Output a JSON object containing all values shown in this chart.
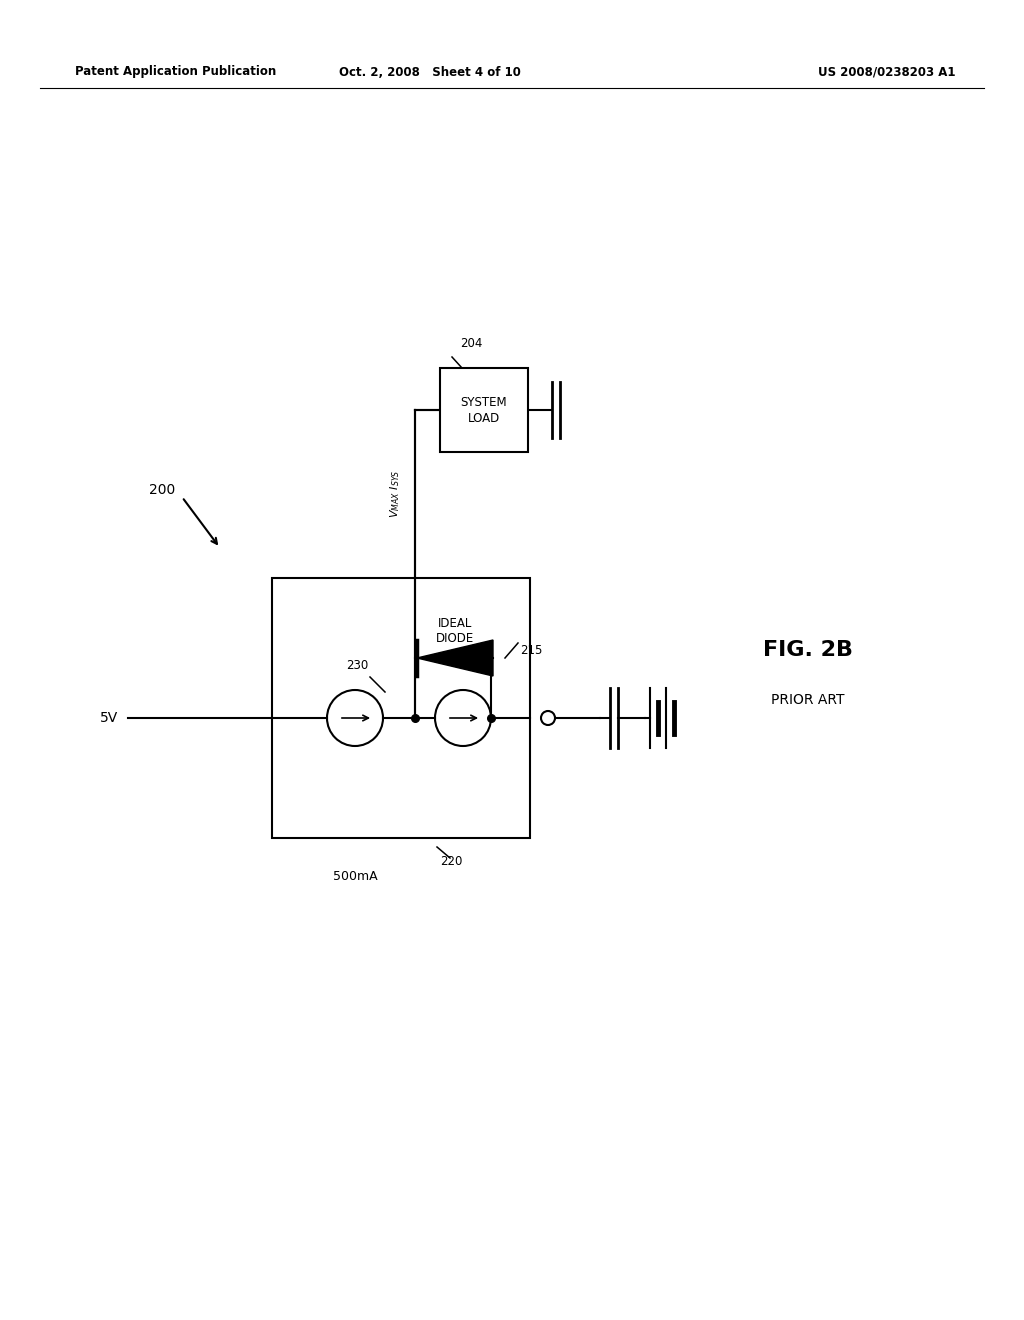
{
  "bg_color": "#ffffff",
  "line_color": "#000000",
  "header_left": "Patent Application Publication",
  "header_center": "Oct. 2, 2008   Sheet 4 of 10",
  "header_right": "US 2008/0238203 A1",
  "fig_label": "FIG. 2B",
  "fig_sublabel": "PRIOR ART",
  "label_200": "200",
  "label_204": "204",
  "label_215": "215",
  "label_220": "220",
  "label_230": "230",
  "label_5v": "5V",
  "label_500ma": "500mA",
  "label_vmax_isys": "Vₘₐₓ Iₛуₛ"
}
